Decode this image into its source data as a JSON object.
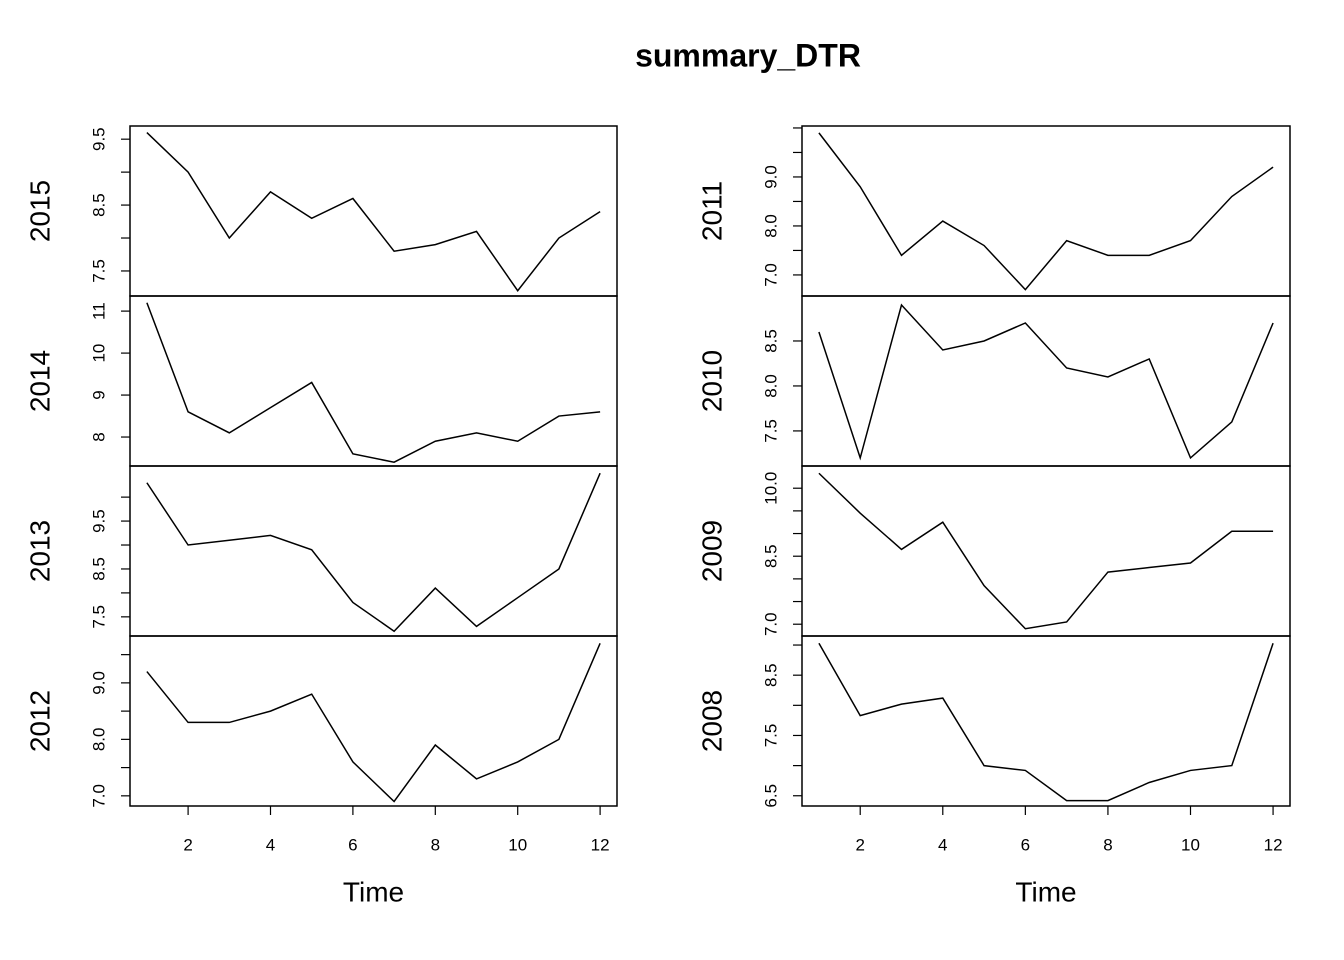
{
  "title": "summary_DTR",
  "chart_data": [
    {
      "type": "line",
      "ylabel": "2015",
      "x": [
        1,
        2,
        3,
        4,
        5,
        6,
        7,
        8,
        9,
        10,
        11,
        12
      ],
      "values": [
        9.6,
        9.0,
        8.0,
        8.7,
        8.3,
        8.6,
        7.8,
        7.9,
        8.1,
        7.2,
        8.0,
        8.4
      ],
      "color": "#000000",
      "xlim": [
        0.59,
        12.41
      ],
      "ylim": [
        7.12,
        9.7
      ],
      "yticks": [
        7.5,
        {
          "value": 8,
          "label": null
        },
        8.5,
        {
          "value": 9,
          "label": null
        },
        9.5
      ]
    },
    {
      "type": "line",
      "ylabel": "2014",
      "x": [
        1,
        2,
        3,
        4,
        5,
        6,
        7,
        8,
        9,
        10,
        11,
        12
      ],
      "values": [
        11.2,
        8.6,
        8.1,
        8.7,
        9.3,
        7.6,
        7.4,
        7.9,
        8.1,
        7.9,
        8.5,
        8.6
      ],
      "color": "#000000",
      "xlim": [
        0.59,
        12.41
      ],
      "ylim": [
        7.31,
        11.36
      ],
      "yticks": [
        8,
        9,
        10,
        11
      ]
    },
    {
      "type": "line",
      "ylabel": "2013",
      "x": [
        1,
        2,
        3,
        4,
        5,
        6,
        7,
        8,
        9,
        10,
        11,
        12
      ],
      "values": [
        10.3,
        9.0,
        9.1,
        9.2,
        8.9,
        7.8,
        7.2,
        8.1,
        7.3,
        7.9,
        8.5,
        10.5
      ],
      "color": "#000000",
      "xlim": [
        0.59,
        12.41
      ],
      "ylim": [
        7.1,
        10.65
      ],
      "yticks": [
        7.5,
        {
          "value": 8,
          "label": null
        },
        8.5,
        {
          "value": 9,
          "label": null
        },
        9.5,
        {
          "value": 10,
          "label": null
        }
      ]
    },
    {
      "type": "line",
      "ylabel": "2012",
      "x": [
        1,
        2,
        3,
        4,
        5,
        6,
        7,
        8,
        9,
        10,
        11,
        12
      ],
      "values": [
        9.2,
        8.3,
        8.3,
        8.5,
        8.8,
        7.6,
        6.9,
        7.9,
        7.3,
        7.6,
        8.0,
        9.7
      ],
      "color": "#000000",
      "xlim": [
        0.59,
        12.41
      ],
      "ylim": [
        6.82,
        9.83
      ],
      "yticks": [
        {
          "value": 7,
          "label": "7.0"
        },
        {
          "value": 7.5,
          "label": null
        },
        {
          "value": 8,
          "label": "8.0"
        },
        {
          "value": 8.5,
          "label": null
        },
        {
          "value": 9,
          "label": "9.0"
        },
        {
          "value": 9.5,
          "label": null
        }
      ],
      "xlabel": "Time",
      "xticks": [
        2,
        4,
        6,
        8,
        10,
        12
      ]
    },
    {
      "type": "line",
      "ylabel": "2011",
      "x": [
        1,
        2,
        3,
        4,
        5,
        6,
        7,
        8,
        9,
        10,
        11,
        12
      ],
      "values": [
        9.9,
        8.8,
        7.4,
        8.1,
        7.6,
        6.7,
        7.7,
        7.4,
        7.4,
        7.7,
        8.6,
        9.2
      ],
      "color": "#000000",
      "xlim": [
        0.59,
        12.41
      ],
      "ylim": [
        6.57,
        10.04
      ],
      "yticks": [
        {
          "value": 7,
          "label": "7.0"
        },
        {
          "value": 7.5,
          "label": null
        },
        {
          "value": 8,
          "label": "8.0"
        },
        {
          "value": 8.5,
          "label": null
        },
        {
          "value": 9,
          "label": "9.0"
        },
        {
          "value": 9.5,
          "label": null
        },
        {
          "value": 10,
          "label": null
        }
      ]
    },
    {
      "type": "line",
      "ylabel": "2010",
      "x": [
        1,
        2,
        3,
        4,
        5,
        6,
        7,
        8,
        9,
        10,
        11,
        12
      ],
      "values": [
        8.6,
        7.2,
        8.9,
        8.4,
        8.5,
        8.7,
        8.2,
        8.1,
        8.3,
        7.2,
        7.6,
        8.7
      ],
      "color": "#000000",
      "xlim": [
        0.59,
        12.41
      ],
      "ylim": [
        7.11,
        9.0
      ],
      "yticks": [
        7.5,
        {
          "value": 8,
          "label": "8.0"
        },
        8.5
      ]
    },
    {
      "type": "line",
      "ylabel": "2009",
      "x": [
        1,
        2,
        3,
        4,
        5,
        6,
        7,
        8,
        9,
        10,
        11,
        12
      ],
      "values": [
        10.33,
        9.45,
        8.65,
        9.25,
        7.85,
        6.9,
        7.05,
        8.15,
        8.25,
        8.35,
        9.05,
        9.05
      ],
      "color": "#000000",
      "xlim": [
        0.59,
        12.41
      ],
      "ylim": [
        6.74,
        10.49
      ],
      "yticks": [
        {
          "value": 7,
          "label": "7.0"
        },
        {
          "value": 7.5,
          "label": null
        },
        {
          "value": 8,
          "label": null
        },
        8.5,
        {
          "value": 9,
          "label": null
        },
        {
          "value": 9.5,
          "label": null
        },
        {
          "value": 10,
          "label": "10.0"
        }
      ]
    },
    {
      "type": "line",
      "ylabel": "2008",
      "x": [
        1,
        2,
        3,
        4,
        5,
        6,
        7,
        8,
        9,
        10,
        11,
        12
      ],
      "values": [
        9.03,
        7.83,
        8.02,
        8.12,
        7.0,
        6.92,
        6.42,
        6.42,
        6.72,
        6.92,
        7.0,
        9.03
      ],
      "color": "#000000",
      "xlim": [
        0.59,
        12.41
      ],
      "ylim": [
        6.33,
        9.15
      ],
      "yticks": [
        6.5,
        {
          "value": 7,
          "label": null
        },
        7.5,
        {
          "value": 8,
          "label": null
        },
        8.5,
        {
          "value": 9,
          "label": null
        }
      ],
      "xlabel": "Time",
      "xticks": [
        2,
        4,
        6,
        8,
        10,
        12
      ]
    }
  ]
}
